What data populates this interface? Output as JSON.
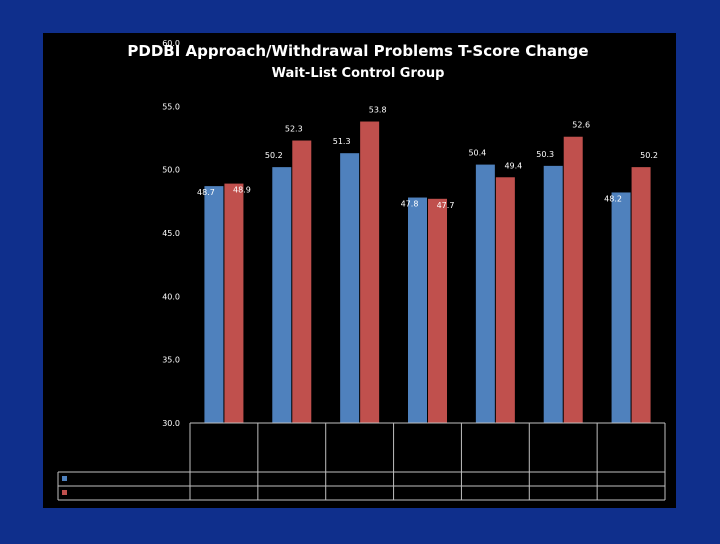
{
  "chart_data": {
    "type": "bar",
    "title": "PDDBI Approach/Withdrawal Problems T-Score Change",
    "subtitle": "Wait-List Control Group",
    "ylim": [
      30,
      60
    ],
    "yticks": [
      "30.0",
      "35.0",
      "40.0",
      "45.0",
      "50.0",
      "55.0",
      "60.0"
    ],
    "categories": [
      "",
      "",
      "",
      "",
      "",
      "",
      ""
    ],
    "series": [
      {
        "name": "",
        "color": "#4f81bd",
        "values": [
          48.7,
          50.2,
          51.3,
          47.8,
          50.4,
          50.3,
          48.2
        ]
      },
      {
        "name": "",
        "color": "#c0504d",
        "values": [
          48.9,
          52.3,
          53.8,
          47.7,
          49.4,
          52.6,
          50.2
        ]
      }
    ],
    "data_labels": {
      "series0": [
        "48.7",
        "50.2",
        "51.3",
        "47.8",
        "50.4",
        "50.3",
        "48.2"
      ],
      "series1": [
        "48.9",
        "52.3",
        "53.8",
        "47.7",
        "49.4",
        "52.6",
        "50.2"
      ]
    },
    "grid": false,
    "legend": "top"
  }
}
